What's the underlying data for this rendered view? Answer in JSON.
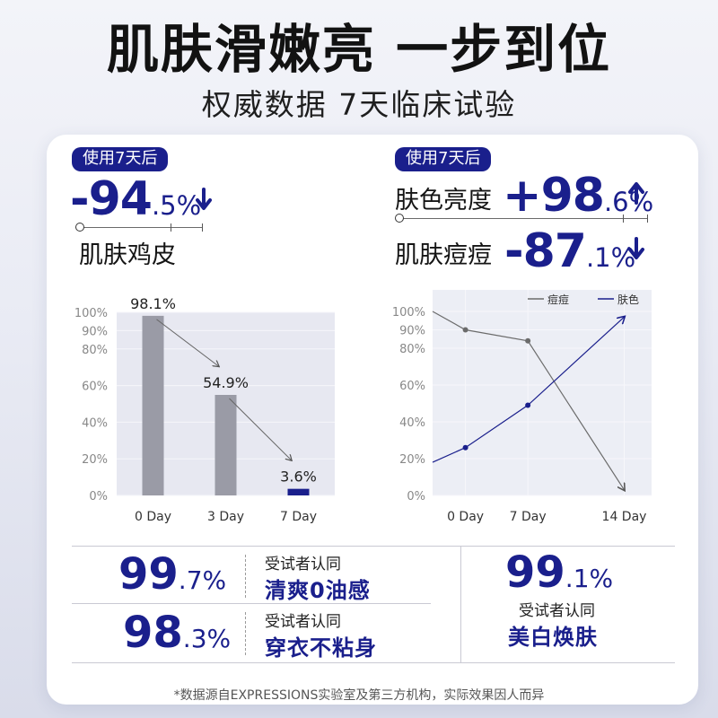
{
  "header": {
    "title": "肌肤滑嫩亮 一步到位",
    "subtitle": "权威数据 7天临床试验"
  },
  "left_panel": {
    "tag": "使用7天后",
    "metric_int": "-94",
    "metric_dec": ".5%",
    "metric_arrow": "down-arrow-icon",
    "metric_label": "肌肤鸡皮"
  },
  "right_panel": {
    "tag": "使用7天后",
    "brightness_label": "肤色亮度",
    "brightness_int": "+98",
    "brightness_dec": ".6%",
    "brightness_arrow": "up-arrow-icon",
    "acne_label": "肌肤痘痘",
    "acne_int": "-87",
    "acne_dec": ".1%",
    "acne_arrow": "down-arrow-icon"
  },
  "stats": {
    "s1_int": "99",
    "s1_dec": ".7%",
    "s1_small": "受试者认同",
    "s1_big": "清爽0油感",
    "s2_int": "98",
    "s2_dec": ".3%",
    "s2_small": "受试者认同",
    "s2_big": "穿衣不粘身",
    "s3_int": "99",
    "s3_dec": ".1%",
    "s3_small": "受试者认同",
    "s3_big": "美白焕肤"
  },
  "footnote": "*数据源自EXPRESSIONS实验室及第三方机构，实际效果因人而异",
  "colors": {
    "accent": "#1a1f8c",
    "bar_gray": "#9a9ba6",
    "line_gray": "#6b6b6b",
    "line_navy": "#1a1f8c"
  },
  "chart_data": [
    {
      "type": "bar",
      "categories": [
        "0 Day",
        "3 Day",
        "7 Day"
      ],
      "values": [
        98.1,
        54.9,
        3.6
      ],
      "data_labels": [
        "98.1%",
        "54.9%",
        "3.6%"
      ],
      "bar_colors": [
        "#9a9ba6",
        "#9a9ba6",
        "#1a1f8c"
      ],
      "yticks": [
        "100%",
        "90%",
        "80%",
        "60%",
        "40%",
        "20%",
        "0%"
      ],
      "ytick_values": [
        100,
        90,
        80,
        60,
        40,
        20,
        0
      ],
      "ylim": [
        0,
        100
      ],
      "grid": true
    },
    {
      "type": "line",
      "categories": [
        "0 Day",
        "7 Day",
        "14 Day"
      ],
      "series": [
        {
          "name": "痘痘",
          "color": "#6b6b6b",
          "points": [
            [
              0,
              100
            ],
            [
              0.3,
              90
            ],
            [
              0.87,
              84
            ],
            [
              1.75,
              3
            ]
          ]
        },
        {
          "name": "肤色",
          "color": "#1a1f8c",
          "points": [
            [
              0,
              18
            ],
            [
              0.3,
              26
            ],
            [
              0.87,
              49
            ],
            [
              1.75,
              97
            ]
          ]
        }
      ],
      "yticks": [
        "100%",
        "90%",
        "80%",
        "60%",
        "40%",
        "20%",
        "0%"
      ],
      "ytick_values": [
        100,
        90,
        80,
        60,
        40,
        20,
        0
      ],
      "ylim": [
        0,
        100
      ],
      "legend_position": "top-right",
      "grid": true
    }
  ]
}
